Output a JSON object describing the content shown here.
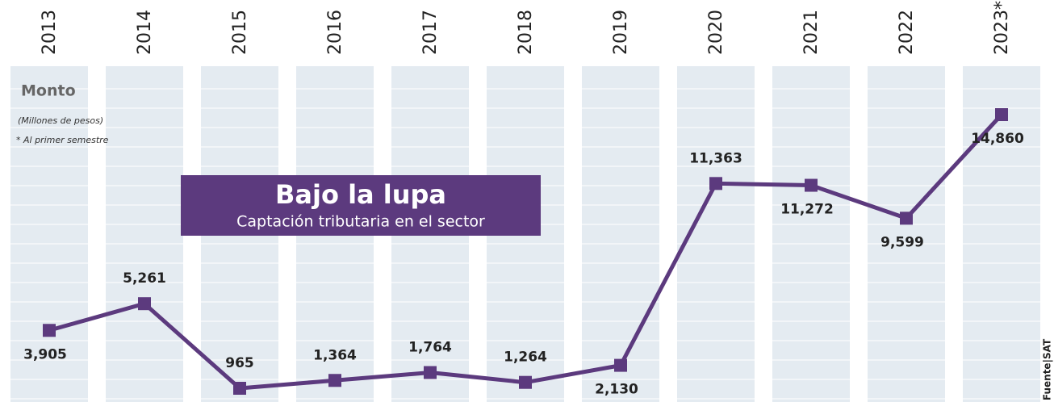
{
  "chart_data": {
    "type": "line",
    "title": "Bajo la lupa",
    "subtitle": "Captación tributaria en el sector",
    "y_label": "Monto",
    "unit_note": "(Millones de pesos)",
    "footnote": "* Al primer semestre",
    "source": "Fuente|SAT",
    "categories": [
      "2013",
      "2014",
      "2015",
      "2016",
      "2017",
      "2018",
      "2019",
      "2020",
      "2021",
      "2022",
      "2023*"
    ],
    "values": [
      3905,
      5261,
      965,
      1364,
      1764,
      1264,
      2130,
      11363,
      11272,
      9599,
      14860
    ],
    "value_labels": [
      "3,905",
      "5,261",
      "965",
      "1,364",
      "1,764",
      "1,264",
      "2,130",
      "11,363",
      "11,272",
      "9,599",
      "14,860"
    ],
    "color": "#5c3a7e"
  }
}
